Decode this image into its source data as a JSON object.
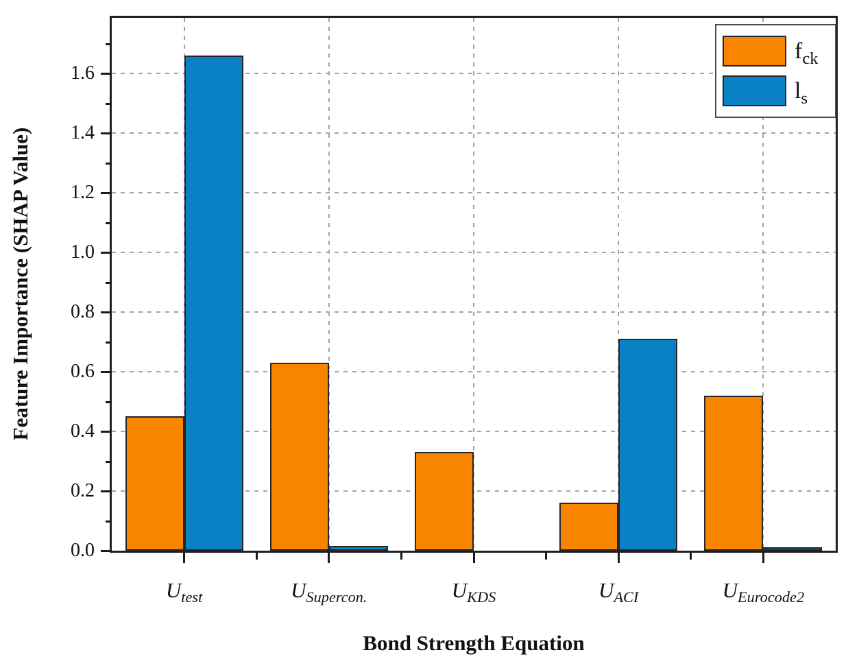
{
  "chart_data": {
    "type": "bar",
    "title": "",
    "xlabel": "Bond Strength Equation",
    "ylabel": "Feature Importance (SHAP Value)",
    "ylim": [
      0,
      1.8
    ],
    "yticks_major": [
      0.0,
      0.2,
      0.4,
      0.6,
      0.8,
      1.0,
      1.2,
      1.4,
      1.6
    ],
    "yticks_minor": [
      0.1,
      0.3,
      0.5,
      0.7,
      0.9,
      1.1,
      1.3,
      1.5,
      1.7
    ],
    "grid": "dashed horizontal lines at major y ticks and dashed vertical lines at category centers",
    "legend_position": "top-right inside plot, framed box",
    "categories": [
      {
        "base": "U",
        "sub": "test"
      },
      {
        "base": "U",
        "sub": "Supercon."
      },
      {
        "base": "U",
        "sub": "KDS"
      },
      {
        "base": "U",
        "sub": "ACI"
      },
      {
        "base": "U",
        "sub": "Eurocode2"
      }
    ],
    "series": [
      {
        "name_base": "f",
        "name_sub": "ck",
        "color": "#F98400",
        "values": [
          0.45,
          0.63,
          0.33,
          0.16,
          0.52
        ]
      },
      {
        "name_base": "l",
        "name_sub": "s",
        "color": "#0981C4",
        "values": [
          1.66,
          0.015,
          0.0,
          0.71,
          0.012
        ]
      }
    ],
    "colors": {
      "bar_border": "#262626",
      "frame": "#1f1f1f",
      "grid": "#a4a4a4",
      "legend_border": "#4a4a4a",
      "text": "#111111"
    }
  }
}
